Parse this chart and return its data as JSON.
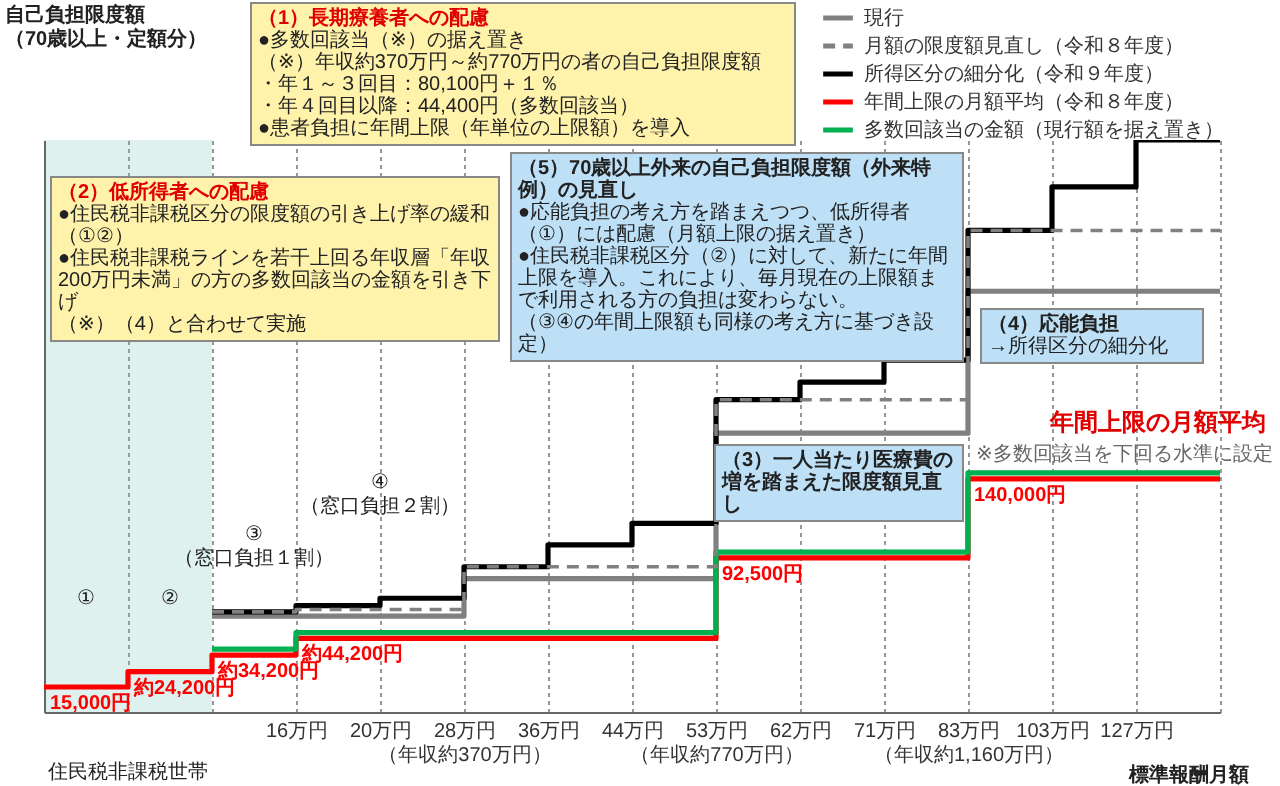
{
  "chart_data": {
    "type": "step",
    "ylabel": "自己負担限度額（70歳以上・定額分）",
    "xlabel": "標準報酬月額",
    "categories": [
      null,
      null,
      null,
      "16万円",
      "20万円",
      "28万円（年収約370万円）",
      "36万円",
      "44万円",
      "53万円（年収約770万円）",
      "62万円",
      "71万円",
      "83万円（年収約1,160万円）",
      "103万円",
      "127万円",
      null
    ],
    "ylim": [
      0,
      343400
    ],
    "series": [
      {
        "name": "現行",
        "color": "#808080",
        "values": [
          null,
          null,
          57600,
          57600,
          57600,
          80100,
          80100,
          80100,
          167400,
          167400,
          167400,
          252600,
          252600,
          252600,
          252600
        ]
      },
      {
        "name": "月額の限度額見直し（令和８年度）",
        "color": "#808080",
        "line_style": "dashed",
        "values": [
          null,
          null,
          60100,
          61500,
          61500,
          87200,
          87200,
          87200,
          187500,
          187500,
          187500,
          289100,
          289100,
          289100,
          289100
        ]
      },
      {
        "name": "所得区分の細分化（令和９年度）",
        "color": "#000000",
        "values": [
          null,
          null,
          60100,
          63900,
          68300,
          87200,
          100300,
          113300,
          187500,
          198100,
          211200,
          289100,
          315200,
          343400,
          343400
        ]
      },
      {
        "name": "年間上限の月額平均（令和８年度）",
        "color": "#ff0000",
        "values": [
          15000,
          24200,
          34200,
          44200,
          44200,
          44200,
          44200,
          44200,
          92500,
          92500,
          92500,
          140000,
          140000,
          140000,
          140000
        ],
        "value_labels": [
          "15,000円",
          "約24,200円",
          "約34,200円",
          "約44,200円",
          null,
          null,
          null,
          null,
          "92,500円",
          null,
          null,
          "140,000円",
          null,
          null,
          null
        ]
      },
      {
        "name": "多数回該当の金額（現行額を据え置き）",
        "color": "#00b050",
        "values": [
          null,
          null,
          37800,
          47600,
          47600,
          47600,
          47600,
          47600,
          96000,
          96000,
          96000,
          143500,
          143500,
          143500,
          143500
        ]
      }
    ],
    "grid": "x",
    "legend": "top right",
    "annotations": [
      "（1）長期療養者への配慮",
      "●多数回該当（※）の据え置き",
      "（※）年収約370万円～約770万円の者の自己負担限度額",
      "・年１～３回目：80,100円＋１％",
      "・年４回目以降：44,400円（多数回該当）",
      "●患者負担に年間上限（年単位の上限額）を導入",
      "（2）低所得者への配慮",
      "●住民税非課税区分の限度額の引き上げ率の緩和（①②）",
      "●住民税非課税ラインを若干上回る年収層「年収200万円未満」の方の多数回該当の金額を引き下げ",
      "（※）（4）と合わせて実施",
      "（3）一人当たり医療費の増を踏まえた限度額見直し",
      "（4）応能負担",
      "→所得区分の細分化",
      "（5）70歳以上外来の自己負担限度額（外来特例）の見直し",
      "●応能負担の考え方を踏まえつつ、低所得者（①）には配慮（月額上限の据え置き）",
      "●住民税非課税区分（②）に対して、新たに年間上限を導入。これにより、毎月現在の上限額まで利用される方の負担は変わらない。",
      "（③④の年間上限額も同様の考え方に基づき設定）",
      "年間上限の月額平均",
      "※多数回該当を下回る水準に設定",
      "①",
      "②",
      "③",
      "（窓口負担１割）",
      "④",
      "（窓口負担２割）",
      "住民税非課税世帯"
    ]
  }
}
